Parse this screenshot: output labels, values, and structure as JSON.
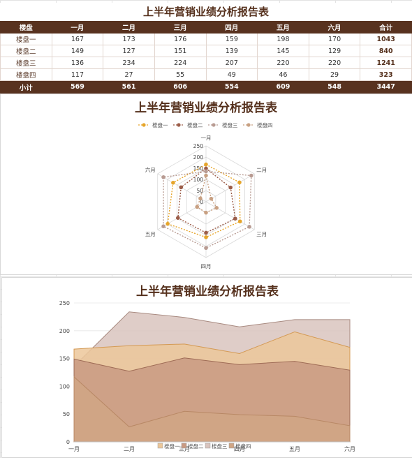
{
  "report": {
    "title": "上半年营销业绩分析报告表",
    "columns": [
      "楼盘",
      "一月",
      "二月",
      "三月",
      "四月",
      "五月",
      "六月",
      "合计"
    ],
    "rows": [
      {
        "name": "楼盘一",
        "values": [
          "167",
          "173",
          "176",
          "159",
          "198",
          "170"
        ],
        "total": "1043"
      },
      {
        "name": "楼盘二",
        "values": [
          "149",
          "127",
          "151",
          "139",
          "145",
          "129"
        ],
        "total": "840"
      },
      {
        "name": "楼盘三",
        "values": [
          "136",
          "234",
          "224",
          "207",
          "220",
          "220"
        ],
        "total": "1241"
      },
      {
        "name": "楼盘四",
        "values": [
          "117",
          "27",
          "55",
          "49",
          "46",
          "29"
        ],
        "total": "323"
      }
    ],
    "subtotal": {
      "label": "小计",
      "values": [
        "569",
        "561",
        "606",
        "554",
        "609",
        "548"
      ],
      "total": "3447"
    }
  },
  "colors": {
    "header_bg": "#58321f",
    "title": "#55301c",
    "series": [
      "#e6a52a",
      "#9b5c48",
      "#b89b92",
      "#c8a082"
    ]
  },
  "chart_data": [
    {
      "type": "radar",
      "title": "上半年营销业绩分析报告表",
      "categories": [
        "一月",
        "二月",
        "三月",
        "四月",
        "五月",
        "六月"
      ],
      "series": [
        {
          "name": "楼盘一",
          "values": [
            167,
            173,
            176,
            159,
            198,
            170
          ]
        },
        {
          "name": "楼盘二",
          "values": [
            149,
            127,
            151,
            139,
            145,
            129
          ]
        },
        {
          "name": "楼盘三",
          "values": [
            136,
            234,
            224,
            207,
            220,
            220
          ]
        },
        {
          "name": "楼盘四",
          "values": [
            117,
            27,
            55,
            49,
            46,
            29
          ]
        }
      ],
      "rlim": [
        0,
        250
      ],
      "rticks": [
        0,
        50,
        100,
        150,
        200,
        250
      ],
      "legend": "top",
      "grid": true
    },
    {
      "type": "area",
      "title": "上半年营销业绩分析报告表",
      "categories": [
        "一月",
        "二月",
        "三月",
        "四月",
        "五月",
        "六月"
      ],
      "series": [
        {
          "name": "楼盘一",
          "values": [
            167,
            173,
            176,
            159,
            198,
            170
          ]
        },
        {
          "name": "楼盘二",
          "values": [
            149,
            127,
            151,
            139,
            145,
            129
          ]
        },
        {
          "name": "楼盘三",
          "values": [
            136,
            234,
            224,
            207,
            220,
            220
          ]
        },
        {
          "name": "楼盘四",
          "values": [
            117,
            27,
            55,
            49,
            46,
            29
          ]
        }
      ],
      "ylim": [
        0,
        250
      ],
      "yticks": [
        0,
        50,
        100,
        150,
        200,
        250
      ],
      "legend": "bottom",
      "grid": true
    }
  ]
}
